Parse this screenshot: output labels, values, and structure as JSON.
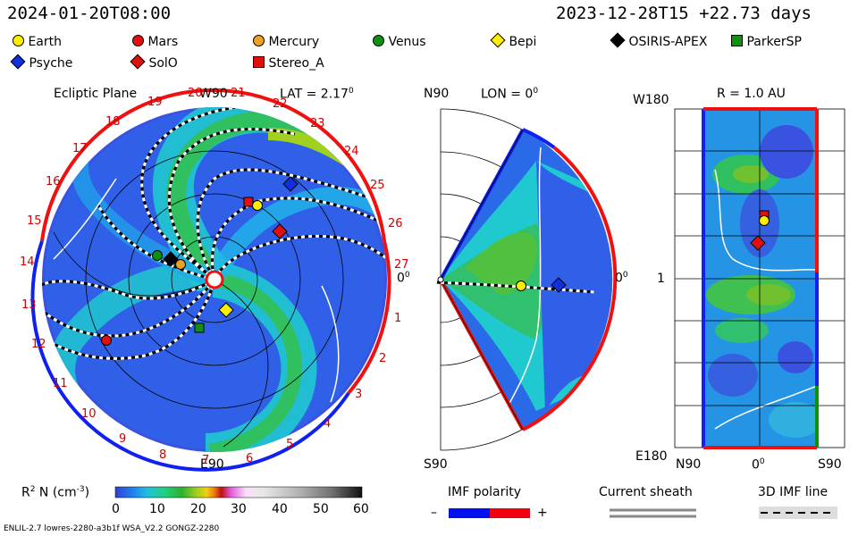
{
  "header": {
    "left_time": "2024-01-20T08:00",
    "right_time": "2023-12-28T15 +22.73 days"
  },
  "legend": {
    "row1": [
      {
        "label": "Earth",
        "shape": "circle",
        "color": "#ffee00"
      },
      {
        "label": "Mars",
        "shape": "circle",
        "color": "#e01010"
      },
      {
        "label": "Mercury",
        "shape": "circle",
        "color": "#f0a020"
      },
      {
        "label": "Venus",
        "shape": "circle",
        "color": "#109010"
      },
      {
        "label": "Bepi",
        "shape": "diamond",
        "color": "#ffee00"
      },
      {
        "label": "OSIRIS-APEX",
        "shape": "diamond",
        "color": "#000000"
      },
      {
        "label": "ParkerSP",
        "shape": "square",
        "color": "#109010"
      }
    ],
    "row2": [
      {
        "label": "Psyche",
        "shape": "diamond",
        "color": "#1030e0"
      },
      {
        "label": "SolO",
        "shape": "diamond",
        "color": "#e01010"
      },
      {
        "label": "Stereo_A",
        "shape": "square",
        "color": "#e01010"
      }
    ]
  },
  "panels": {
    "ecliptic": {
      "title": "Ecliptic Plane",
      "top": "W90",
      "lat": "LAT = 2.17",
      "deg": "0",
      "bottom": "E90",
      "right": "0",
      "right_deg": "0",
      "carrington": [
        "19",
        "20",
        "21",
        "22",
        "23",
        "24",
        "25",
        "26",
        "27",
        "1",
        "2",
        "3",
        "4",
        "5",
        "6",
        "7",
        "8",
        "9",
        "10",
        "11",
        "12",
        "13",
        "14",
        "15",
        "16",
        "17",
        "18"
      ]
    },
    "meridional": {
      "top_left": "N90",
      "lon": "LON = 0",
      "deg": "0",
      "bottom": "S90",
      "right": "0",
      "right_deg": "0"
    },
    "latlon": {
      "title": "R = 1.0 AU",
      "top_left": "W180",
      "mid_left": "1",
      "bottom_left": "E180",
      "x_left": "N90",
      "x_mid": "0",
      "x_mid_deg": "0",
      "x_right": "S90"
    }
  },
  "colorbar": {
    "label": "R",
    "label_sup": "2",
    "label_rest": " N (cm",
    "label_exp": "-3",
    "label_close": ")",
    "ticks": [
      "0",
      "10",
      "20",
      "30",
      "40",
      "50",
      "60"
    ],
    "colors": [
      "#3040d0",
      "#2080f0",
      "#20c0e0",
      "#20d080",
      "#30b030",
      "#a0d020",
      "#f0d010",
      "#f08010",
      "#c01010",
      "#e060e0",
      "#f0c0f0",
      "#e0e0e0",
      "#b0b0b0",
      "#808080",
      "#404040",
      "#101010"
    ]
  },
  "imf": {
    "title": "IMF polarity",
    "minus": "–",
    "plus": "+",
    "neg_color": "#0010f0",
    "pos_color": "#f00010"
  },
  "sheath": {
    "title": "Current sheath"
  },
  "imf3d": {
    "title": "3D IMF line"
  },
  "footer": {
    "text": "ENLIL-2.7 lowres-2280-a3b1f WSA_V2.2 GONGZ-2280"
  }
}
